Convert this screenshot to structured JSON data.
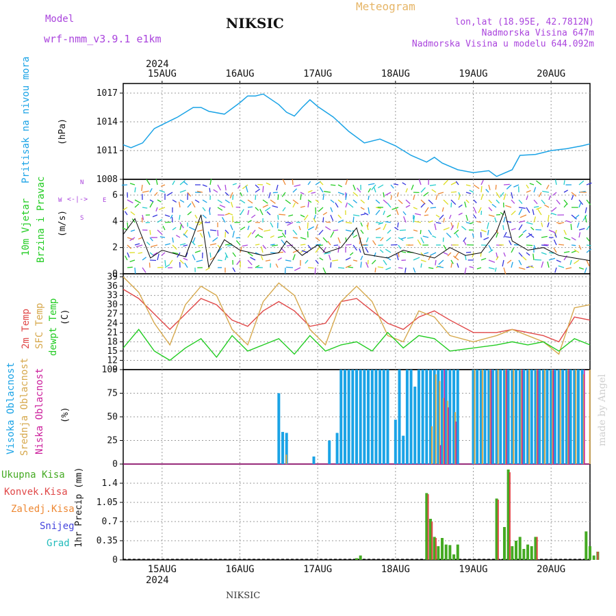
{
  "header": {
    "model_label": "Model",
    "model_name": "wrf-nmm_v3.9.1 e1km",
    "station": "NIKSIC",
    "meteogram": "Meteogram",
    "lonlat": "lon,lat (18.95E, 42.7812N)",
    "altitude": "Nadmorska Visina 647m",
    "model_altitude": "Nadmorska Visina u modelu 644.092m"
  },
  "footer": {
    "station": "NIKSIC",
    "watermark": "made by Angel"
  },
  "colors": {
    "pressure": "#1aa3e6",
    "wind_label": "#22cc22",
    "compass": "#aa44dd",
    "temp": "#e04848",
    "sfc": "#d6a84c",
    "dewpt": "#22cc22",
    "cloud_high": "#1aa3e6",
    "cloud_mid": "#d6a84c",
    "cloud_low": "#cc1f9c",
    "rain_total": "#44aa22",
    "rain_conv": "#e04848",
    "rain_grid": "#ee8833",
    "snow": "#4444dd",
    "hail": "#22bbbb"
  },
  "axes": {
    "year": "2024",
    "x_dates": [
      "15AUG",
      "16AUG",
      "17AUG",
      "18AUG",
      "19AUG",
      "20AUG"
    ]
  },
  "panel_labels": {
    "pressure": [
      "Pritisak na nivou mora",
      "(hPa)"
    ],
    "wind": [
      "10m Vjetar",
      "Brzina i Pravac",
      "(m/s)"
    ],
    "compass": [
      "N",
      "W",
      "E",
      "S"
    ],
    "temp": [
      "2m Temp",
      "SFC Temp",
      "dewpt Temp",
      "(C)"
    ],
    "cloud": [
      "Visoka Oblacnost",
      "Srednja Oblacnost",
      "Niska Oblacnost",
      "(%)"
    ],
    "precip": [
      "Ukupna Kisa",
      "Konvek.Kisa",
      "Zaledj.Kisa",
      "Snijeg",
      "Grad",
      "1hr Precip (mm)"
    ]
  },
  "chart_data": [
    {
      "type": "line",
      "name": "pressure",
      "x_range_days": [
        -0.5,
        5.5
      ],
      "ylim": [
        1008,
        1018
      ],
      "yticks": [
        "1008",
        "1011",
        "1014",
        "1017"
      ],
      "x": [
        -0.5,
        -0.4,
        -0.25,
        -0.1,
        0,
        0.2,
        0.4,
        0.5,
        0.6,
        0.8,
        1.0,
        1.1,
        1.2,
        1.3,
        1.5,
        1.6,
        1.7,
        1.8,
        1.9,
        2.0,
        2.2,
        2.4,
        2.6,
        2.8,
        3.0,
        3.2,
        3.4,
        3.5,
        3.6,
        3.8,
        4.0,
        4.2,
        4.3,
        4.5,
        4.6,
        4.8,
        5.0,
        5.2,
        5.4,
        5.5
      ],
      "y": [
        1011.6,
        1011.3,
        1011.8,
        1013.3,
        1013.7,
        1014.5,
        1015.5,
        1015.5,
        1015.1,
        1014.8,
        1016.0,
        1016.7,
        1016.7,
        1016.9,
        1015.8,
        1015.0,
        1014.6,
        1015.5,
        1016.3,
        1015.6,
        1014.5,
        1013.0,
        1011.8,
        1012.2,
        1011.5,
        1010.5,
        1009.8,
        1010.3,
        1009.7,
        1009.0,
        1008.7,
        1008.9,
        1008.3,
        1009.0,
        1010.5,
        1010.6,
        1011.0,
        1011.2,
        1011.5,
        1011.7
      ]
    },
    {
      "type": "line",
      "name": "wind speed",
      "ylim": [
        0,
        7.2
      ],
      "yticks": [
        "0",
        "2",
        "4",
        "6"
      ],
      "x": [
        -0.5,
        -0.35,
        -0.15,
        0,
        0.3,
        0.5,
        0.6,
        0.7,
        0.8,
        1.0,
        1.3,
        1.5,
        1.6,
        1.8,
        2.0,
        2.1,
        2.3,
        2.5,
        2.6,
        2.9,
        3.1,
        3.3,
        3.5,
        3.7,
        3.9,
        4.1,
        4.3,
        4.4,
        4.5,
        4.7,
        4.9,
        5.1,
        5.3,
        5.5
      ],
      "y": [
        3,
        4.2,
        1.2,
        1.8,
        1.3,
        4.5,
        0.5,
        1.5,
        2.6,
        1.8,
        1.4,
        1.6,
        2.5,
        1.4,
        2.2,
        1.6,
        2.0,
        3.5,
        1.5,
        1.2,
        1.8,
        1.5,
        1.2,
        2.0,
        1.4,
        1.6,
        3.2,
        4.8,
        2.5,
        1.8,
        2.0,
        1.4,
        1.2,
        1.0
      ]
    },
    {
      "type": "line",
      "name": "temperature",
      "ylim": [
        9,
        40
      ],
      "yticks": [
        "9",
        "12",
        "15",
        "18",
        "21",
        "24",
        "27",
        "30",
        "33",
        "36",
        "39"
      ],
      "series": [
        {
          "name": "2m Temp",
          "x": [
            -0.5,
            -0.3,
            -0.1,
            0.1,
            0.3,
            0.5,
            0.7,
            0.9,
            1.1,
            1.3,
            1.5,
            1.7,
            1.9,
            2.1,
            2.3,
            2.5,
            2.7,
            2.9,
            3.1,
            3.3,
            3.5,
            3.7,
            4.0,
            4.3,
            4.5,
            4.7,
            4.9,
            5.1,
            5.3,
            5.5
          ],
          "y": [
            35,
            32,
            27,
            22,
            27,
            32,
            30,
            25,
            23,
            28,
            31,
            28,
            23,
            24,
            31,
            32,
            28,
            24,
            22,
            26,
            28,
            25,
            21,
            21,
            22,
            21,
            20,
            18,
            26,
            25
          ]
        },
        {
          "name": "SFC Temp",
          "x": [
            -0.5,
            -0.3,
            -0.1,
            0.1,
            0.3,
            0.5,
            0.7,
            0.9,
            1.1,
            1.3,
            1.5,
            1.7,
            1.9,
            2.1,
            2.3,
            2.5,
            2.7,
            2.9,
            3.1,
            3.3,
            3.5,
            3.7,
            4.0,
            4.3,
            4.5,
            4.7,
            4.9,
            5.1,
            5.3,
            5.5
          ],
          "y": [
            39,
            34,
            24,
            17,
            30,
            36,
            33,
            22,
            17,
            31,
            37,
            33,
            22,
            17,
            31,
            36,
            31,
            20,
            18,
            28,
            26,
            20,
            18,
            20,
            22,
            20,
            18,
            14,
            29,
            30
          ]
        },
        {
          "name": "dewpt Temp",
          "x": [
            -0.5,
            -0.3,
            -0.1,
            0.1,
            0.3,
            0.5,
            0.7,
            0.9,
            1.1,
            1.3,
            1.5,
            1.7,
            1.9,
            2.1,
            2.3,
            2.5,
            2.7,
            2.9,
            3.1,
            3.3,
            3.5,
            3.7,
            4.0,
            4.3,
            4.5,
            4.7,
            4.9,
            5.1,
            5.3,
            5.5
          ],
          "y": [
            16,
            22,
            15,
            12,
            16,
            19,
            13,
            20,
            15,
            17,
            19,
            14,
            20,
            15,
            17,
            18,
            15,
            21,
            16,
            20,
            19,
            15,
            16,
            17,
            18,
            17,
            18,
            15,
            19,
            17
          ]
        }
      ]
    },
    {
      "type": "bar",
      "name": "cloudiness",
      "ylim": [
        0,
        100
      ],
      "yticks": [
        "0",
        "25",
        "50",
        "75",
        "100"
      ],
      "high": [
        [
          1.5,
          75
        ],
        [
          1.55,
          34
        ],
        [
          1.6,
          33
        ],
        [
          1.95,
          8
        ],
        [
          2.15,
          25
        ],
        [
          2.25,
          33
        ],
        [
          2.3,
          100
        ],
        [
          2.35,
          100
        ],
        [
          2.4,
          100
        ],
        [
          2.45,
          100
        ],
        [
          2.5,
          100
        ],
        [
          2.55,
          100
        ],
        [
          2.6,
          100
        ],
        [
          2.65,
          100
        ],
        [
          2.7,
          100
        ],
        [
          2.75,
          100
        ],
        [
          2.8,
          100
        ],
        [
          2.85,
          100
        ],
        [
          2.9,
          100
        ],
        [
          3.0,
          47
        ],
        [
          3.05,
          100
        ],
        [
          3.1,
          30
        ],
        [
          3.15,
          100
        ],
        [
          3.2,
          100
        ],
        [
          3.25,
          82
        ],
        [
          3.3,
          100
        ],
        [
          3.35,
          100
        ],
        [
          3.4,
          100
        ],
        [
          3.45,
          100
        ],
        [
          3.5,
          100
        ],
        [
          3.55,
          100
        ],
        [
          3.6,
          100
        ],
        [
          3.65,
          100
        ],
        [
          3.7,
          100
        ],
        [
          3.75,
          100
        ],
        [
          3.8,
          100
        ],
        [
          4.0,
          100
        ],
        [
          4.05,
          100
        ],
        [
          4.1,
          100
        ],
        [
          4.15,
          100
        ],
        [
          4.2,
          100
        ],
        [
          4.25,
          100
        ],
        [
          4.3,
          100
        ],
        [
          4.35,
          100
        ],
        [
          4.4,
          100
        ],
        [
          4.45,
          100
        ],
        [
          4.5,
          100
        ],
        [
          4.55,
          100
        ],
        [
          4.6,
          100
        ],
        [
          4.65,
          100
        ],
        [
          4.7,
          100
        ],
        [
          4.75,
          100
        ],
        [
          4.8,
          100
        ],
        [
          4.85,
          100
        ],
        [
          4.9,
          100
        ],
        [
          4.95,
          100
        ],
        [
          5.0,
          100
        ],
        [
          5.05,
          100
        ],
        [
          5.1,
          100
        ],
        [
          5.15,
          100
        ],
        [
          5.2,
          100
        ],
        [
          5.25,
          100
        ],
        [
          5.3,
          100
        ],
        [
          5.35,
          100
        ],
        [
          5.4,
          100
        ]
      ],
      "mid": [
        [
          1.58,
          10
        ],
        [
          3.45,
          40
        ],
        [
          3.5,
          95
        ],
        [
          3.55,
          88
        ],
        [
          3.6,
          70
        ],
        [
          3.65,
          67
        ],
        [
          3.75,
          55
        ],
        [
          4.0,
          100
        ],
        [
          4.1,
          100
        ],
        [
          4.2,
          100
        ],
        [
          4.3,
          100
        ],
        [
          4.4,
          100
        ],
        [
          4.5,
          100
        ],
        [
          4.6,
          100
        ],
        [
          4.7,
          100
        ],
        [
          4.8,
          100
        ],
        [
          4.9,
          100
        ],
        [
          5.0,
          100
        ],
        [
          5.1,
          100
        ],
        [
          5.2,
          100
        ],
        [
          5.3,
          100
        ],
        [
          5.4,
          95
        ],
        [
          5.48,
          100
        ]
      ],
      "low": [
        [
          3.55,
          20
        ],
        [
          3.6,
          100
        ],
        [
          3.65,
          60
        ],
        [
          3.75,
          45
        ],
        [
          4.2,
          100
        ],
        [
          4.4,
          100
        ],
        [
          4.6,
          100
        ],
        [
          4.8,
          100
        ],
        [
          5.0,
          100
        ],
        [
          5.2,
          100
        ],
        [
          5.4,
          100
        ]
      ]
    },
    {
      "type": "bar",
      "name": "precipitation",
      "ylim": [
        0,
        1.75
      ],
      "yticks": [
        "0",
        "0.35",
        "0.7",
        "1.05",
        "1.4"
      ],
      "total": [
        [
          2.5,
          0.03
        ],
        [
          2.55,
          0.08
        ],
        [
          3.4,
          1.22
        ],
        [
          3.45,
          0.75
        ],
        [
          3.5,
          0.42
        ],
        [
          3.55,
          0.25
        ],
        [
          3.6,
          0.4
        ],
        [
          3.65,
          0.28
        ],
        [
          3.7,
          0.27
        ],
        [
          3.75,
          0.1
        ],
        [
          3.8,
          0.28
        ],
        [
          4.3,
          1.12
        ],
        [
          4.4,
          0.6
        ],
        [
          4.45,
          1.65
        ],
        [
          4.5,
          0.25
        ],
        [
          4.55,
          0.35
        ],
        [
          4.6,
          0.42
        ],
        [
          4.65,
          0.2
        ],
        [
          4.7,
          0.28
        ],
        [
          4.75,
          0.25
        ],
        [
          4.8,
          0.42
        ],
        [
          5.45,
          0.52
        ],
        [
          5.5,
          0.25
        ],
        [
          5.55,
          0.08
        ],
        [
          5.6,
          0.15
        ]
      ],
      "conv": [
        [
          3.42,
          1.2
        ],
        [
          3.47,
          0.7
        ],
        [
          3.52,
          0.4
        ],
        [
          4.32,
          1.1
        ],
        [
          4.47,
          1.6
        ],
        [
          4.82,
          0.42
        ],
        [
          5.6,
          0.15
        ]
      ]
    }
  ]
}
